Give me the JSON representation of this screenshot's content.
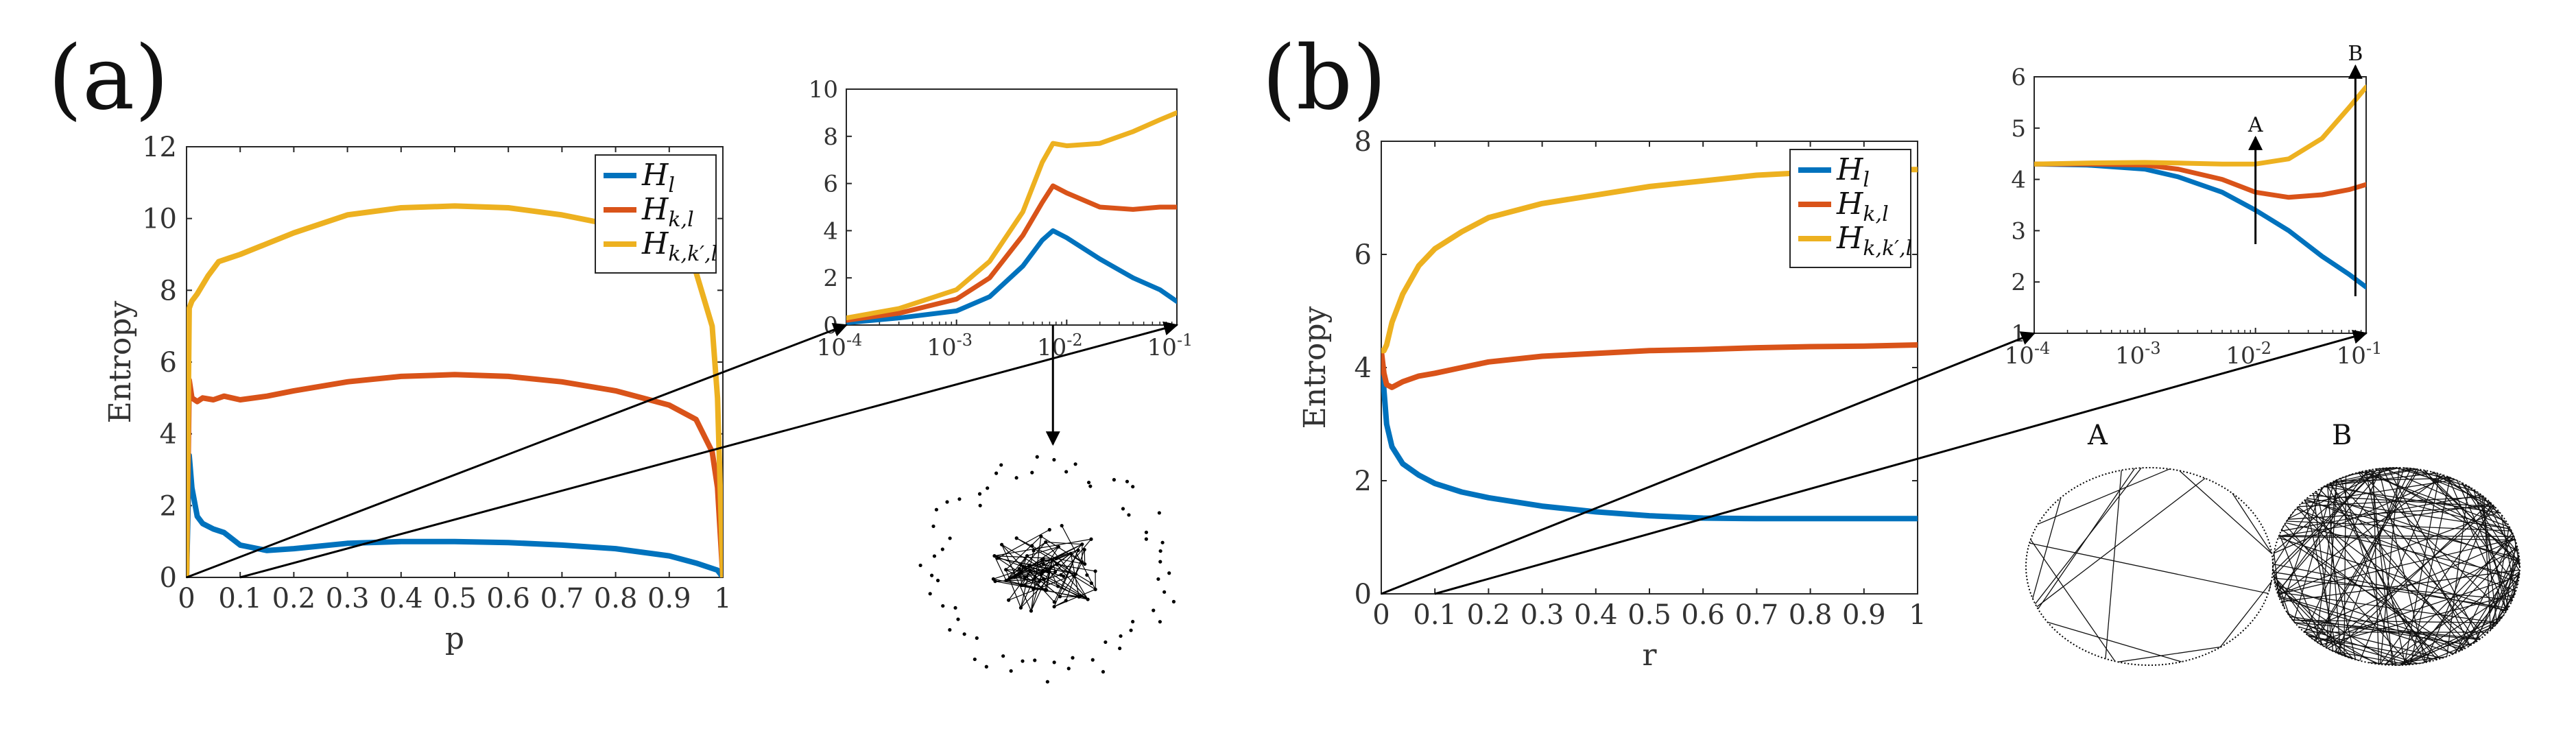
{
  "panels": [
    {
      "label": "(a)",
      "main": {
        "type": "line",
        "xlabel": "p",
        "ylabel": "Entropy",
        "xlim": [
          0,
          1
        ],
        "ylim": [
          0,
          12
        ],
        "xticks": [
          "0",
          "0.1",
          "0.2",
          "0.3",
          "0.4",
          "0.5",
          "0.6",
          "0.7",
          "0.8",
          "0.9",
          "1"
        ],
        "yticks": [
          "0",
          "2",
          "4",
          "6",
          "8",
          "10",
          "12"
        ],
        "series": [
          {
            "name": "H_l",
            "color": "#0072BD",
            "x": [
              0,
              0.005,
              0.01,
              0.02,
              0.03,
              0.05,
              0.07,
              0.1,
              0.15,
              0.2,
              0.3,
              0.4,
              0.5,
              0.6,
              0.7,
              0.8,
              0.9,
              0.95,
              0.99,
              1
            ],
            "y": [
              0,
              3.4,
              2.5,
              1.7,
              1.5,
              1.35,
              1.25,
              0.9,
              0.75,
              0.8,
              0.95,
              1.0,
              1.0,
              0.97,
              0.9,
              0.8,
              0.6,
              0.4,
              0.2,
              0
            ]
          },
          {
            "name": "H_k,l",
            "color": "#D95319",
            "x": [
              0,
              0.005,
              0.01,
              0.02,
              0.03,
              0.05,
              0.07,
              0.1,
              0.15,
              0.2,
              0.3,
              0.4,
              0.5,
              0.6,
              0.7,
              0.8,
              0.9,
              0.95,
              0.98,
              0.99,
              1
            ],
            "y": [
              0,
              5.5,
              5.0,
              4.9,
              5.0,
              4.95,
              5.05,
              4.95,
              5.05,
              5.2,
              5.45,
              5.6,
              5.65,
              5.6,
              5.45,
              5.2,
              4.8,
              4.4,
              3.5,
              2.5,
              0
            ]
          },
          {
            "name": "H_k,k',l",
            "color": "#EDB120",
            "x": [
              0,
              0.005,
              0.01,
              0.02,
              0.04,
              0.06,
              0.08,
              0.1,
              0.15,
              0.2,
              0.3,
              0.4,
              0.5,
              0.6,
              0.7,
              0.8,
              0.9,
              0.95,
              0.98,
              0.99,
              1
            ],
            "y": [
              0,
              7.5,
              7.7,
              7.9,
              8.4,
              8.8,
              8.9,
              9.0,
              9.3,
              9.6,
              10.1,
              10.3,
              10.35,
              10.3,
              10.1,
              9.8,
              9.3,
              8.5,
              7.0,
              5.0,
              0
            ]
          }
        ],
        "legend": [
          {
            "text": "H",
            "sub": "l"
          },
          {
            "text": "H",
            "sub": "k,l"
          },
          {
            "text": "H",
            "sub": "k,k′,l"
          }
        ],
        "legend_position": "top-right"
      },
      "inset": {
        "type": "line",
        "xscale": "log",
        "xlim": [
          0.0001,
          0.1
        ],
        "ylim": [
          0,
          10
        ],
        "xtick_base": "10",
        "xtick_exps": [
          "-4",
          "-3",
          "-2",
          "-1"
        ],
        "yticks": [
          "0",
          "2",
          "4",
          "6",
          "8",
          "10"
        ],
        "series": [
          {
            "name": "H_l",
            "color": "#0072BD",
            "x": [
              0.0001,
              0.0003,
              0.001,
              0.002,
              0.004,
              0.006,
              0.0075,
              0.01,
              0.02,
              0.04,
              0.07,
              0.1
            ],
            "y": [
              0.1,
              0.3,
              0.6,
              1.2,
              2.5,
              3.6,
              4.0,
              3.7,
              2.8,
              2.0,
              1.5,
              1.0
            ]
          },
          {
            "name": "H_k,l",
            "color": "#D95319",
            "x": [
              0.0001,
              0.0003,
              0.001,
              0.002,
              0.004,
              0.006,
              0.0075,
              0.01,
              0.02,
              0.04,
              0.07,
              0.1
            ],
            "y": [
              0.2,
              0.5,
              1.1,
              2.0,
              3.8,
              5.2,
              5.9,
              5.6,
              5.0,
              4.9,
              5.0,
              5.0
            ]
          },
          {
            "name": "H_k,k',l",
            "color": "#EDB120",
            "x": [
              0.0001,
              0.0003,
              0.001,
              0.002,
              0.004,
              0.006,
              0.0075,
              0.01,
              0.02,
              0.04,
              0.07,
              0.1
            ],
            "y": [
              0.3,
              0.7,
              1.5,
              2.7,
              4.8,
              6.9,
              7.7,
              7.6,
              7.7,
              8.2,
              8.7,
              9.0
            ]
          }
        ],
        "marker_x": [
          0.0075
        ]
      },
      "marker_labels": []
    },
    {
      "label": "(b)",
      "main": {
        "type": "line",
        "xlabel": "r",
        "ylabel": "Entropy",
        "xlim": [
          0,
          1
        ],
        "ylim": [
          0,
          8
        ],
        "xticks": [
          "0",
          "0.1",
          "0.2",
          "0.3",
          "0.4",
          "0.5",
          "0.6",
          "0.7",
          "0.8",
          "0.9",
          "1"
        ],
        "yticks": [
          "0",
          "2",
          "4",
          "6",
          "8"
        ],
        "series": [
          {
            "name": "H_l",
            "color": "#0072BD",
            "x": [
              0,
              0.005,
              0.01,
              0.02,
              0.04,
              0.07,
              0.1,
              0.15,
              0.2,
              0.3,
              0.4,
              0.5,
              0.6,
              0.7,
              0.8,
              0.9,
              1
            ],
            "y": [
              4.3,
              3.6,
              3.0,
              2.6,
              2.3,
              2.1,
              1.95,
              1.8,
              1.7,
              1.55,
              1.45,
              1.38,
              1.34,
              1.33,
              1.33,
              1.33,
              1.33
            ]
          },
          {
            "name": "H_k,l",
            "color": "#D95319",
            "x": [
              0,
              0.005,
              0.01,
              0.02,
              0.04,
              0.07,
              0.1,
              0.15,
              0.2,
              0.3,
              0.4,
              0.5,
              0.6,
              0.7,
              0.8,
              0.9,
              1
            ],
            "y": [
              4.3,
              3.9,
              3.7,
              3.65,
              3.75,
              3.85,
              3.9,
              4.0,
              4.1,
              4.2,
              4.25,
              4.3,
              4.32,
              4.35,
              4.37,
              4.38,
              4.4
            ]
          },
          {
            "name": "H_k,k',l",
            "color": "#EDB120",
            "x": [
              0,
              0.005,
              0.01,
              0.02,
              0.04,
              0.07,
              0.1,
              0.15,
              0.2,
              0.3,
              0.4,
              0.5,
              0.6,
              0.7,
              0.8,
              0.9,
              1
            ],
            "y": [
              4.3,
              4.3,
              4.4,
              4.8,
              5.3,
              5.8,
              6.1,
              6.4,
              6.65,
              6.9,
              7.05,
              7.2,
              7.3,
              7.4,
              7.45,
              7.5,
              7.5
            ]
          }
        ],
        "legend": [
          {
            "text": "H",
            "sub": "l"
          },
          {
            "text": "H",
            "sub": "k,l"
          },
          {
            "text": "H",
            "sub": "k,k′,l"
          }
        ],
        "legend_position": "top-right"
      },
      "inset": {
        "type": "line",
        "xscale": "log",
        "xlim": [
          0.0001,
          0.1
        ],
        "ylim": [
          1,
          6
        ],
        "xtick_base": "10",
        "xtick_exps": [
          "-4",
          "-3",
          "-2",
          "-1"
        ],
        "yticks": [
          "1",
          "2",
          "3",
          "4",
          "5",
          "6"
        ],
        "series": [
          {
            "name": "H_l",
            "color": "#0072BD",
            "x": [
              0.0001,
              0.0003,
              0.001,
              0.002,
              0.005,
              0.01,
              0.02,
              0.04,
              0.07,
              0.1
            ],
            "y": [
              4.3,
              4.28,
              4.2,
              4.05,
              3.75,
              3.4,
              3.0,
              2.5,
              2.15,
              1.9
            ]
          },
          {
            "name": "H_k,l",
            "color": "#D95319",
            "x": [
              0.0001,
              0.0003,
              0.001,
              0.002,
              0.005,
              0.01,
              0.02,
              0.04,
              0.07,
              0.1
            ],
            "y": [
              4.3,
              4.3,
              4.28,
              4.2,
              4.0,
              3.75,
              3.65,
              3.7,
              3.8,
              3.9
            ]
          },
          {
            "name": "H_k,k',l",
            "color": "#EDB120",
            "x": [
              0.0001,
              0.0003,
              0.001,
              0.002,
              0.005,
              0.01,
              0.02,
              0.04,
              0.07,
              0.1
            ],
            "y": [
              4.3,
              4.32,
              4.33,
              4.32,
              4.3,
              4.3,
              4.4,
              4.8,
              5.4,
              5.8
            ]
          }
        ],
        "marker_x": [
          0.01,
          0.08
        ]
      },
      "marker_labels": [
        "A",
        "B"
      ]
    }
  ],
  "network_labels": [
    "A",
    "B"
  ]
}
